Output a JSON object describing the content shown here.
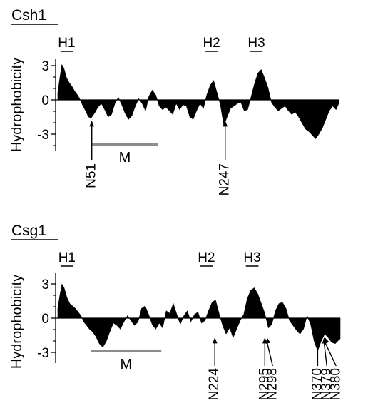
{
  "chart_data": [
    {
      "type": "area",
      "title": "Csh1",
      "ylabel": "Hydrophobicity",
      "ylim": [
        -4,
        4
      ],
      "yticks": [
        "3",
        "0",
        "-3"
      ],
      "x_range": [
        1,
        414
      ],
      "hydrophobic_segments": [
        {
          "label": "H1",
          "start": 5,
          "end": 23
        },
        {
          "label": "H2",
          "start": 218,
          "end": 236
        },
        {
          "label": "H3",
          "start": 284,
          "end": 302
        }
      ],
      "region_bar": {
        "label": "M",
        "start": 51,
        "end": 148
      },
      "glycosylation_sites": [
        {
          "label": "N51",
          "position": 51
        },
        {
          "label": "N247",
          "position": 247
        }
      ],
      "profile": {
        "x": [
          1,
          4,
          7,
          10,
          14,
          18,
          22,
          26,
          30,
          34,
          38,
          42,
          46,
          50,
          55,
          60,
          65,
          70,
          75,
          80,
          85,
          90,
          95,
          100,
          105,
          110,
          115,
          120,
          125,
          130,
          135,
          140,
          145,
          150,
          155,
          160,
          165,
          170,
          175,
          180,
          185,
          190,
          195,
          200,
          205,
          210,
          215,
          220,
          225,
          230,
          235,
          240,
          245,
          250,
          255,
          260,
          265,
          270,
          275,
          280,
          285,
          290,
          295,
          300,
          305,
          310,
          315,
          320,
          325,
          330,
          335,
          340,
          345,
          350,
          355,
          360,
          365,
          370,
          375,
          380,
          385,
          390,
          395,
          400,
          405,
          410,
          414
        ],
        "y": [
          0.6,
          1.8,
          2.9,
          2.6,
          1.8,
          1.4,
          1.1,
          0.7,
          0.4,
          0.0,
          -0.5,
          -0.9,
          -1.4,
          -1.5,
          -1.1,
          -0.6,
          -0.3,
          -0.8,
          -1.4,
          -1.2,
          -0.3,
          0.2,
          -0.4,
          -1.1,
          -1.6,
          -1.3,
          -0.5,
          0.1,
          -0.3,
          -0.9,
          0.3,
          0.8,
          0.4,
          -0.5,
          -0.8,
          -0.6,
          -0.9,
          -1.2,
          -0.3,
          -0.8,
          -0.4,
          -0.5,
          -1.4,
          -1.6,
          -0.9,
          -0.3,
          -0.7,
          0.4,
          1.2,
          1.6,
          0.6,
          -0.4,
          -2.1,
          -1.4,
          -0.7,
          -0.5,
          -0.3,
          -0.2,
          -0.9,
          -0.8,
          0.2,
          1.3,
          2.2,
          2.5,
          1.8,
          1.0,
          -0.2,
          -0.6,
          -0.9,
          -0.7,
          -0.5,
          -0.9,
          -1.2,
          -1.0,
          -1.4,
          -1.9,
          -2.4,
          -2.6,
          -2.9,
          -3.2,
          -2.8,
          -2.3,
          -1.6,
          -0.9,
          -0.5,
          -0.8,
          -0.3
        ]
      }
    },
    {
      "type": "area",
      "title": "Csg1",
      "ylabel": "Hydrophobicity",
      "ylim": [
        -4,
        4
      ],
      "yticks": [
        "3",
        "0",
        "-3"
      ],
      "x_range": [
        1,
        402
      ],
      "hydrophobic_segments": [
        {
          "label": "H1",
          "start": 5,
          "end": 23
        },
        {
          "label": "H2",
          "start": 203,
          "end": 221
        },
        {
          "label": "H3",
          "start": 268,
          "end": 286
        }
      ],
      "region_bar": {
        "label": "M",
        "start": 48,
        "end": 148
      },
      "glycosylation_sites": [
        {
          "label": "N224",
          "position": 224
        },
        {
          "label": "N295",
          "position": 295
        },
        {
          "label": "N298",
          "position": 298
        },
        {
          "label": "N370",
          "position": 370
        },
        {
          "label": "N379",
          "position": 379
        },
        {
          "label": "N380",
          "position": 380
        }
      ],
      "profile": {
        "x": [
          1,
          4,
          7,
          10,
          14,
          18,
          22,
          26,
          30,
          34,
          38,
          42,
          46,
          50,
          55,
          60,
          65,
          70,
          75,
          80,
          85,
          90,
          95,
          100,
          105,
          110,
          115,
          120,
          125,
          130,
          135,
          140,
          145,
          150,
          155,
          160,
          165,
          170,
          175,
          180,
          185,
          190,
          195,
          200,
          205,
          210,
          215,
          220,
          225,
          230,
          235,
          240,
          245,
          250,
          255,
          260,
          265,
          270,
          275,
          280,
          285,
          290,
          295,
          300,
          305,
          310,
          315,
          320,
          325,
          330,
          335,
          340,
          345,
          350,
          355,
          360,
          365,
          370,
          375,
          380,
          385,
          390,
          395,
          400,
          402
        ],
        "y": [
          0.8,
          1.9,
          2.8,
          2.5,
          1.7,
          1.2,
          1.0,
          0.8,
          0.5,
          0.2,
          -0.3,
          -0.6,
          -0.9,
          -1.1,
          -1.5,
          -2.1,
          -2.4,
          -1.9,
          -1.1,
          -0.4,
          -0.6,
          -0.9,
          -0.3,
          0.2,
          -0.2,
          -0.6,
          -0.3,
          0.8,
          1.0,
          0.3,
          -0.5,
          -0.9,
          -0.4,
          -0.8,
          0.6,
          0.4,
          1.2,
          0.3,
          -0.5,
          0.2,
          0.6,
          -0.3,
          0.3,
          0.5,
          -0.4,
          -0.2,
          0.6,
          1.3,
          1.5,
          0.4,
          -0.6,
          -1.3,
          -0.8,
          -1.6,
          -0.9,
          -0.2,
          0.3,
          1.6,
          2.3,
          2.5,
          2.0,
          1.2,
          0.4,
          -0.8,
          -0.5,
          0.6,
          1.2,
          1.3,
          0.8,
          -0.2,
          -0.6,
          -1.0,
          -1.3,
          -0.9,
          0.2,
          -0.5,
          -1.9,
          -2.7,
          -1.9,
          -1.3,
          -1.6,
          -2.0,
          -2.1,
          -1.8,
          -1.7
        ]
      }
    }
  ]
}
